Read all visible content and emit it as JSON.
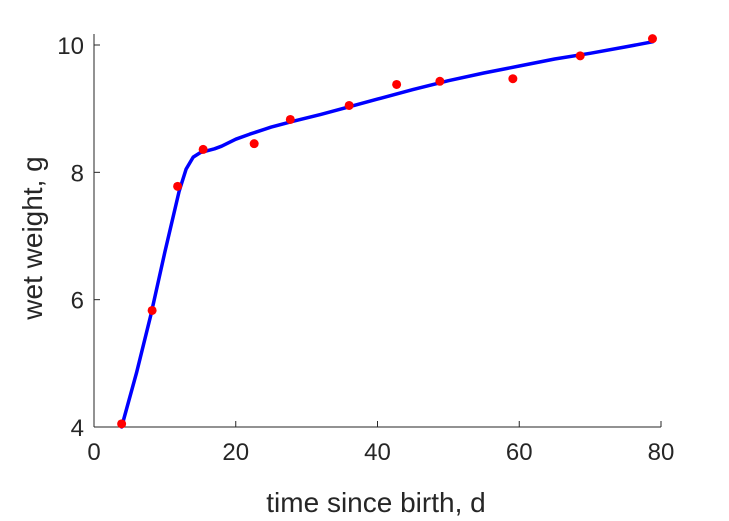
{
  "chart_data": {
    "type": "scatter",
    "title": "",
    "xlabel": "time since birth, d",
    "ylabel": "wet weight, g",
    "xlim": [
      0,
      80
    ],
    "ylim": [
      4,
      10.1
    ],
    "xticks": [
      0,
      20,
      40,
      60,
      80
    ],
    "yticks": [
      4,
      6,
      8,
      10
    ],
    "grid": false,
    "colors": {
      "points": "#ff0000",
      "fit": "#0000ff",
      "axis": "#262626"
    },
    "series": [
      {
        "type": "scatter",
        "x": [
          3.9,
          8.2,
          11.8,
          15.4,
          22.6,
          27.7,
          36.0,
          42.7,
          48.8,
          59.1,
          68.6,
          78.8
        ],
        "y": [
          4.05,
          5.83,
          7.78,
          8.36,
          8.45,
          8.83,
          9.05,
          9.38,
          9.43,
          9.47,
          9.83,
          10.1
        ]
      },
      {
        "type": "line",
        "x": [
          3.9,
          6,
          8,
          10,
          12,
          13,
          14,
          15,
          16,
          17,
          18,
          20,
          22,
          25,
          28,
          32,
          36,
          40,
          45,
          50,
          55,
          60,
          65,
          70,
          75,
          78.8
        ],
        "y": [
          4.0,
          4.85,
          5.75,
          6.75,
          7.7,
          8.05,
          8.24,
          8.31,
          8.34,
          8.37,
          8.41,
          8.52,
          8.6,
          8.71,
          8.8,
          8.91,
          9.03,
          9.15,
          9.3,
          9.44,
          9.56,
          9.67,
          9.78,
          9.87,
          9.97,
          10.05
        ]
      }
    ]
  }
}
